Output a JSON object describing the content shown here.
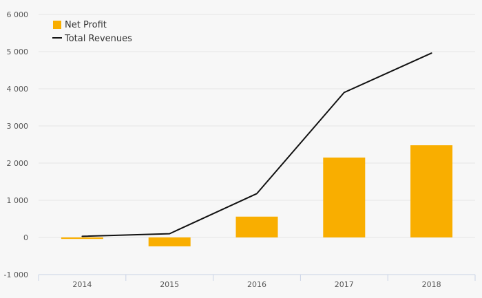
{
  "chart_data": {
    "type": "bar",
    "categories": [
      "2014",
      "2015",
      "2016",
      "2017",
      "2018"
    ],
    "series": [
      {
        "name": "Net Profit",
        "type": "bar",
        "values": [
          -40,
          -240,
          560,
          2150,
          2480
        ]
      },
      {
        "name": "Total Revenues",
        "type": "line",
        "values": [
          30,
          100,
          1180,
          3900,
          4960
        ]
      }
    ],
    "ylim": [
      -1000,
      6000
    ],
    "yticks": [
      -1000,
      0,
      1000,
      2000,
      3000,
      4000,
      5000,
      6000
    ],
    "ytick_labels": [
      "-1 000",
      "0",
      "1 000",
      "2 000",
      "3 000",
      "4 000",
      "5 000",
      "6 000"
    ],
    "legend": "top-left",
    "grid": true,
    "colors": {
      "bar": "#f9ae00",
      "line": "#111111"
    }
  }
}
